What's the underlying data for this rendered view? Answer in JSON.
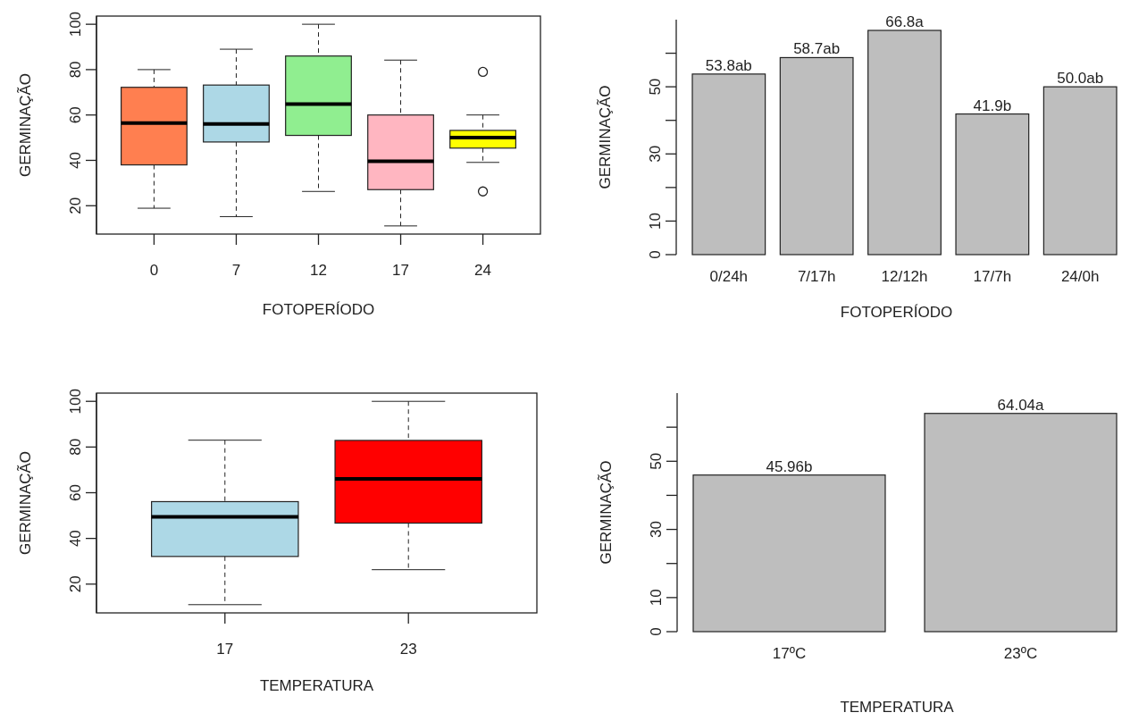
{
  "chart_data": [
    {
      "type": "box",
      "xlabel": "FOTOPERÍODO",
      "ylabel": "GERMINAÇÃO",
      "categories": [
        "0",
        "7",
        "12",
        "17",
        "24"
      ],
      "colors": [
        "#ff7f50",
        "#add8e6",
        "#90ee90",
        "#ffb6c1",
        "#ffff00"
      ],
      "ylim": [
        7.5,
        103.6
      ],
      "yticks": [
        20,
        40,
        60,
        80,
        100
      ],
      "boxes": [
        {
          "low": 18.9,
          "q1": 38,
          "median": 56.4,
          "q3": 72.2,
          "high": 80
        },
        {
          "low": 15.2,
          "q1": 48.1,
          "median": 56,
          "q3": 73.2,
          "high": 89
        },
        {
          "low": 26.3,
          "q1": 51,
          "median": 64.8,
          "q3": 86,
          "high": 100
        },
        {
          "low": 11.1,
          "q1": 27.1,
          "median": 39.6,
          "q3": 60,
          "high": 84.2
        },
        {
          "low": 39.1,
          "q1": 45.4,
          "median": 50,
          "q3": 53.2,
          "high": 60,
          "outliers": [
            79,
            26.3
          ]
        }
      ]
    },
    {
      "type": "bar",
      "xlabel": "FOTOPERÍODO",
      "ylabel": "GERMINAÇÃO",
      "categories": [
        "0/24h",
        "7/17h",
        "12/12h",
        "17/7h",
        "24/0h"
      ],
      "values": [
        53.8,
        58.7,
        66.8,
        41.9,
        50.0
      ],
      "value_labels": [
        "53.8ab",
        "58.7ab",
        "66.8a",
        "41.9b",
        "50.0ab"
      ],
      "color": "#bebebe",
      "ylim": [
        0,
        70
      ],
      "yticks": [
        0,
        10,
        {
          "value": 20,
          "label": null
        },
        30,
        {
          "value": 40,
          "label": null
        },
        50,
        {
          "value": 60,
          "label": null
        }
      ]
    },
    {
      "type": "box",
      "xlabel": "TEMPERATURA",
      "ylabel": "GERMINAÇÃO",
      "categories": [
        "17",
        "23"
      ],
      "colors": [
        "#add8e6",
        "#ff0000"
      ],
      "ylim": [
        7.4,
        103.6
      ],
      "yticks": [
        20,
        40,
        60,
        80,
        100
      ],
      "boxes": [
        {
          "low": 11,
          "q1": 32.1,
          "median": 49.4,
          "q3": 56.1,
          "high": 83
        },
        {
          "low": 26.3,
          "q1": 46.7,
          "median": 66.1,
          "q3": 82.9,
          "high": 100
        }
      ]
    },
    {
      "type": "bar",
      "xlabel": "TEMPERATURA",
      "ylabel": "GERMINAÇÃO",
      "categories": [
        "17ºC",
        "23ºC"
      ],
      "values": [
        45.96,
        64.04
      ],
      "value_labels": [
        "45.96b",
        "64.04a"
      ],
      "color": "#bebebe",
      "ylim": [
        0,
        70
      ],
      "yticks": [
        0,
        10,
        {
          "value": 20,
          "label": null
        },
        30,
        {
          "value": 40,
          "label": null
        },
        50,
        {
          "value": 60,
          "label": null
        }
      ]
    }
  ]
}
